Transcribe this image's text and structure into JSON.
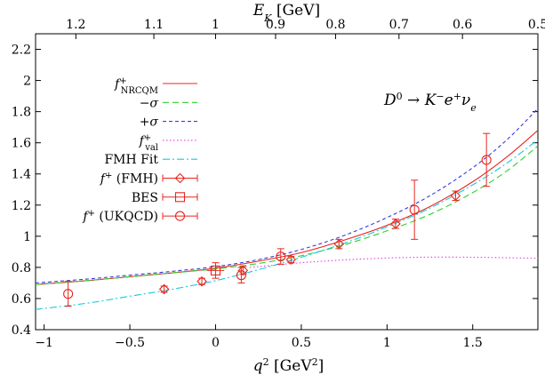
{
  "chart_data": {
    "type": "line",
    "xlabel": {
      "var": "q",
      "sup": "2",
      "unit": "[GeV",
      "unit_sup": "2",
      "unit_end": "]"
    },
    "top_xlabel": {
      "var": "E",
      "sub": "K",
      "unit": "[GeV]"
    },
    "annotation": {
      "parts": [
        "D",
        "0",
        " → K",
        "−",
        "e",
        "+",
        "ν",
        "e"
      ]
    },
    "xlim": [
      -1.05,
      1.88
    ],
    "ylim": [
      0.4,
      2.3
    ],
    "x_ticks": [
      -1,
      -0.5,
      0,
      0.5,
      1,
      1.5
    ],
    "x_tick_labels": [
      "−1",
      "−0.5",
      "0",
      "0.5",
      "1",
      "1.5"
    ],
    "y_ticks": [
      0.4,
      0.6,
      0.8,
      1.0,
      1.2,
      1.4,
      1.6,
      1.8,
      2.0,
      2.2
    ],
    "y_tick_labels": [
      "0.4",
      "0.6",
      "0.8",
      "1",
      "1.2",
      "1.4",
      "1.6",
      "1.8",
      "2",
      "2.2"
    ],
    "top_ticks": [
      {
        "label": "1.2",
        "x": -0.815
      },
      {
        "label": "1.1",
        "x": -0.36
      },
      {
        "label": "1",
        "x": 0.0
      },
      {
        "label": "0.9",
        "x": 0.35
      },
      {
        "label": "0.8",
        "x": 0.7
      },
      {
        "label": "0.7",
        "x": 1.07
      },
      {
        "label": "0.6",
        "x": 1.44
      },
      {
        "label": "0.5",
        "x": 1.88
      }
    ],
    "colors": {
      "red": "#e8261f",
      "green": "#2ed12e",
      "blue": "#3a3ade",
      "magenta": "#e040e0",
      "cyan": "#18c8e0"
    },
    "series": [
      {
        "name": "f+NRCQM",
        "style": "solid",
        "color": "#e8261f",
        "x": [
          -1.05,
          -0.75,
          -0.5,
          -0.25,
          0,
          0.25,
          0.5,
          0.75,
          1.0,
          1.25,
          1.5,
          1.7,
          1.88
        ],
        "y": [
          0.69,
          0.715,
          0.74,
          0.765,
          0.795,
          0.84,
          0.895,
          0.975,
          1.07,
          1.19,
          1.35,
          1.51,
          1.68
        ]
      },
      {
        "name": "−σ",
        "style": "dashed",
        "color": "#2ed12e",
        "x": [
          -1.05,
          -0.75,
          -0.5,
          -0.25,
          0,
          0.25,
          0.5,
          0.75,
          1.0,
          1.25,
          1.5,
          1.7,
          1.88
        ],
        "y": [
          0.69,
          0.715,
          0.74,
          0.765,
          0.79,
          0.825,
          0.875,
          0.945,
          1.035,
          1.14,
          1.28,
          1.42,
          1.58
        ]
      },
      {
        "name": "+σ",
        "style": "dashed-fine",
        "color": "#3a3ade",
        "x": [
          -1.05,
          -0.75,
          -0.5,
          -0.25,
          0,
          0.25,
          0.5,
          0.75,
          1.0,
          1.25,
          1.5,
          1.7,
          1.88
        ],
        "y": [
          0.7,
          0.725,
          0.75,
          0.775,
          0.805,
          0.85,
          0.915,
          1.005,
          1.12,
          1.26,
          1.44,
          1.62,
          1.82
        ]
      },
      {
        "name": "f+val",
        "style": "dotted",
        "color": "#e040e0",
        "x": [
          0.2,
          0.35,
          0.5,
          0.75,
          1.0,
          1.25,
          1.5,
          1.7,
          1.88
        ],
        "y": [
          0.8,
          0.815,
          0.83,
          0.848,
          0.86,
          0.866,
          0.865,
          0.862,
          0.858
        ]
      },
      {
        "name": "FMH Fit",
        "style": "dashdot",
        "color": "#18c8e0",
        "x": [
          -1.05,
          -0.75,
          -0.5,
          -0.25,
          0,
          0.25,
          0.5,
          0.75,
          1.0,
          1.25,
          1.5,
          1.7,
          1.88
        ],
        "y": [
          0.53,
          0.57,
          0.615,
          0.66,
          0.715,
          0.785,
          0.865,
          0.955,
          1.06,
          1.18,
          1.33,
          1.47,
          1.62
        ]
      }
    ],
    "points": [
      {
        "name": "f+ (FMH)",
        "marker": "diamond",
        "color": "#e8261f",
        "data": [
          {
            "x": -0.3,
            "y": 0.66,
            "err": 0.02
          },
          {
            "x": -0.08,
            "y": 0.71,
            "err": 0.02
          },
          {
            "x": 0.16,
            "y": 0.78,
            "err": 0.025
          },
          {
            "x": 0.44,
            "y": 0.85,
            "err": 0.02
          },
          {
            "x": 0.72,
            "y": 0.95,
            "err": 0.03
          },
          {
            "x": 1.05,
            "y": 1.08,
            "err": 0.03
          },
          {
            "x": 1.4,
            "y": 1.26,
            "err": 0.03
          }
        ]
      },
      {
        "name": "BES",
        "marker": "square",
        "color": "#e8261f",
        "data": [
          {
            "x": 0.0,
            "y": 0.78,
            "err": 0.05,
            "xerr": 0.05
          }
        ]
      },
      {
        "name": "f+ (UKQCD)",
        "marker": "circle",
        "color": "#e8261f",
        "data": [
          {
            "x": -0.86,
            "y": 0.63,
            "err": 0.08
          },
          {
            "x": 0.15,
            "y": 0.75,
            "err": 0.05
          },
          {
            "x": 0.38,
            "y": 0.87,
            "err": 0.05
          },
          {
            "x": 1.16,
            "y": 1.17,
            "err": 0.19
          },
          {
            "x": 1.58,
            "y": 1.49,
            "err": 0.17
          }
        ]
      }
    ],
    "legend": [
      {
        "label_main": "f",
        "label_sup": "+",
        "label_sub": "NRCQM",
        "italic": true,
        "kind": "line",
        "ref": 0
      },
      {
        "label_main": "−σ",
        "italic": true,
        "kind": "line",
        "ref": 1
      },
      {
        "label_main": "+σ",
        "italic": true,
        "kind": "line",
        "ref": 2
      },
      {
        "label_main": "f",
        "label_sup": "+",
        "label_sub": "val",
        "italic": true,
        "kind": "line",
        "ref": 3
      },
      {
        "label_main": "FMH Fit",
        "italic": false,
        "kind": "line",
        "ref": 4
      },
      {
        "label_main": "f",
        "label_sup": "+",
        "label_rest": " (FMH)",
        "italic": true,
        "kind": "point",
        "ref": 0
      },
      {
        "label_main": "BES",
        "italic": false,
        "kind": "point",
        "ref": 1
      },
      {
        "label_main": "f",
        "label_sup": "+",
        "label_rest": " (UKQCD)",
        "italic": true,
        "kind": "point",
        "ref": 2
      }
    ],
    "grid": false,
    "legend_position": "top-left"
  }
}
